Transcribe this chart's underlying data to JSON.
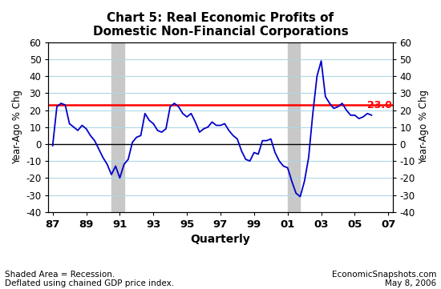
{
  "title": "Chart 5: Real Economic Profits of\nDomestic Non-Financial Corporations",
  "ylabel_left": "Year-Ago % Chg",
  "ylabel_right": "Year-Ago % Chg",
  "xlabel": "Quarterly",
  "ylim": [
    -40,
    60
  ],
  "yticks": [
    -40,
    -30,
    -20,
    -10,
    0,
    10,
    20,
    30,
    40,
    50,
    60
  ],
  "reference_line": 23.0,
  "reference_color": "#ff0000",
  "line_color": "#0000cc",
  "recession_shades": [
    {
      "start": 1990.5,
      "end": 1991.25
    },
    {
      "start": 2001.0,
      "end": 2001.75
    }
  ],
  "recession_color": "#c8c8c8",
  "footnote_left": "Shaded Area = Recession.\nDeflated using chained GDP price index.",
  "footnote_right": "EconomicSnapshots.com\nMay 8, 2006",
  "xtick_labels": [
    "87",
    "89",
    "91",
    "93",
    "95",
    "97",
    "99",
    "01",
    "03",
    "05",
    "07"
  ],
  "xtick_positions": [
    1987,
    1989,
    1991,
    1993,
    1995,
    1997,
    1999,
    2001,
    2003,
    2005,
    2007
  ],
  "data": {
    "quarters": [
      1987.0,
      1987.25,
      1987.5,
      1987.75,
      1988.0,
      1988.25,
      1988.5,
      1988.75,
      1989.0,
      1989.25,
      1989.5,
      1989.75,
      1990.0,
      1990.25,
      1990.5,
      1990.75,
      1991.0,
      1991.25,
      1991.5,
      1991.75,
      1992.0,
      1992.25,
      1992.5,
      1992.75,
      1993.0,
      1993.25,
      1993.5,
      1993.75,
      1994.0,
      1994.25,
      1994.5,
      1994.75,
      1995.0,
      1995.25,
      1995.5,
      1995.75,
      1996.0,
      1996.25,
      1996.5,
      1996.75,
      1997.0,
      1997.25,
      1997.5,
      1997.75,
      1998.0,
      1998.25,
      1998.5,
      1998.75,
      1999.0,
      1999.25,
      1999.5,
      1999.75,
      2000.0,
      2000.25,
      2000.5,
      2000.75,
      2001.0,
      2001.25,
      2001.5,
      2001.75,
      2002.0,
      2002.25,
      2002.5,
      2002.75,
      2003.0,
      2003.25,
      2003.5,
      2003.75,
      2004.0,
      2004.25,
      2004.5,
      2004.75,
      2005.0,
      2005.25,
      2005.5,
      2005.75,
      2006.0
    ],
    "values": [
      -1.0,
      22.0,
      24.0,
      23.0,
      12.0,
      10.0,
      8.0,
      11.0,
      9.0,
      5.0,
      2.0,
      -3.0,
      -8.0,
      -12.0,
      -18.0,
      -13.0,
      -20.0,
      -12.0,
      -9.0,
      1.0,
      4.0,
      5.0,
      18.0,
      14.0,
      12.0,
      8.0,
      7.0,
      9.0,
      22.0,
      24.0,
      22.0,
      18.0,
      16.0,
      18.0,
      13.0,
      7.0,
      9.0,
      10.0,
      13.0,
      11.0,
      11.0,
      12.0,
      8.0,
      5.0,
      3.0,
      -4.0,
      -9.0,
      -10.0,
      -5.0,
      -6.0,
      2.0,
      2.0,
      3.0,
      -5.0,
      -10.0,
      -13.0,
      -14.0,
      -22.0,
      -29.0,
      -31.0,
      -22.0,
      -8.0,
      18.0,
      40.0,
      49.0,
      28.0,
      24.0,
      21.0,
      22.0,
      24.0,
      20.0,
      17.0,
      17.0,
      15.0,
      16.0,
      18.0,
      17.0
    ]
  },
  "background_color": "#ffffff",
  "grid_color": "#add8e6",
  "xlim": [
    1986.75,
    2007.25
  ]
}
